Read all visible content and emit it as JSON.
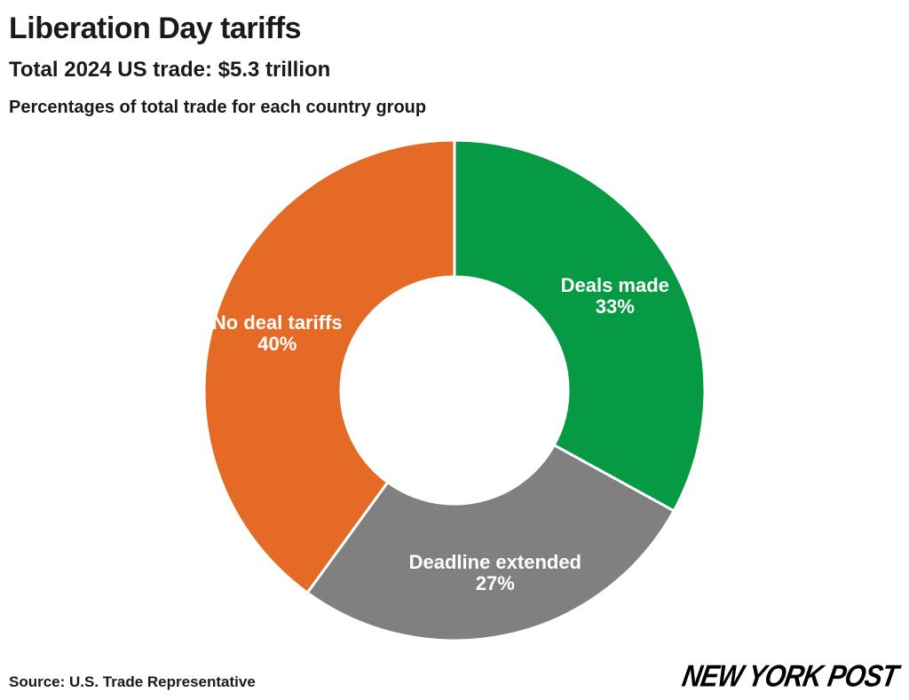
{
  "title": "Liberation Day tariffs",
  "subtitle": "Total 2024 US trade: $5.3 trillion",
  "description": "Percentages of total trade for each country group",
  "source": "Source: U.S. Trade Representative",
  "logo_text": "NEW YORK POST",
  "chart_data": {
    "type": "pie",
    "donut": true,
    "slices": [
      {
        "label": "Deals made",
        "value": 33,
        "value_label": "33%",
        "color": "#079a45"
      },
      {
        "label": "Deadline extended",
        "value": 27,
        "value_label": "27%",
        "color": "#808080"
      },
      {
        "label": "No deal tariffs",
        "value": 40,
        "value_label": "40%",
        "color": "#e46a25"
      }
    ],
    "start": "top",
    "direction": "clockwise"
  }
}
